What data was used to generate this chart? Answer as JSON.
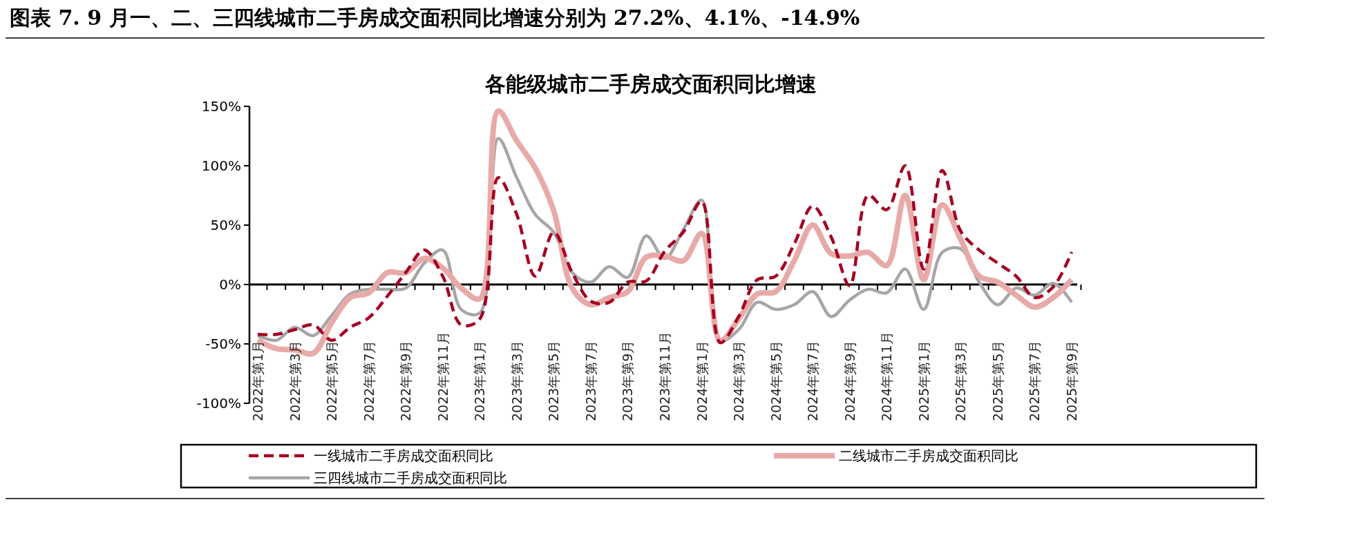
{
  "chart_data": {
    "type": "line",
    "title": "图表 7. 9 月一、二、三四线城市二手房成交面积同比增速分别为 27.2%、4.1%、-14.9%",
    "subtitle": "各能级城市二手房成交面积同比增速",
    "categories": [
      "2022年第1月",
      null,
      "2022年第3月",
      null,
      "2022年第5月",
      null,
      "2022年第7月",
      null,
      "2022年第9月",
      null,
      "2022年第11月",
      null,
      "2023年第1月",
      null,
      "2023年第3月",
      null,
      "2023年第5月",
      null,
      "2023年第7月",
      null,
      "2023年第9月",
      null,
      "2023年第11月",
      null,
      "2024年第1月",
      null,
      "2024年第3月",
      null,
      "2024年第5月",
      null,
      "2024年第7月",
      null,
      "2024年第9月",
      null,
      "2024年第11月",
      null,
      "2025年第1月",
      null,
      "2025年第3月",
      null,
      "2025年第5月",
      null,
      "2025年第7月",
      null,
      "2025年第9月"
    ],
    "series": [
      {
        "name": "一线城市二手房成交面积同比",
        "color": "#a50021",
        "line_style": "dashed",
        "values": [
          -42,
          -42,
          -38,
          -34,
          -47,
          -36,
          -28,
          -10,
          10,
          29,
          7,
          -34,
          -29,
          90,
          59,
          7,
          44,
          10,
          -14,
          -15,
          2,
          3,
          28,
          44,
          70,
          -49,
          -27,
          4,
          7,
          34,
          66,
          40,
          -1,
          75,
          63,
          100,
          13,
          96,
          45,
          29,
          18,
          7,
          -11,
          -2,
          27.2
        ]
      },
      {
        "name": "二线城市二手房成交面积同比",
        "color": "#e8aaa8",
        "values": [
          -47,
          -54,
          -55,
          -58,
          -32,
          -11,
          -7,
          10,
          10,
          22,
          14,
          -3,
          -12,
          146,
          121,
          98,
          62,
          -3,
          -17,
          -11,
          -6,
          23,
          24,
          20,
          43,
          -47,
          -29,
          -8,
          -6,
          20,
          50,
          26,
          24,
          27,
          16,
          75,
          4,
          67,
          38,
          7,
          2,
          -9,
          -19,
          -11,
          4.1
        ]
      },
      {
        "name": "三四线城市二手房成交面积同比",
        "color": "#a6a6a6",
        "values": [
          -43,
          -47,
          -36,
          -43,
          -26,
          -8,
          -4,
          -4,
          -3,
          18,
          29,
          -21,
          -24,
          123,
          90,
          59,
          44,
          10,
          2,
          15,
          6,
          41,
          22,
          46,
          71,
          -47,
          -38,
          -15,
          -21,
          -17,
          -6,
          -27,
          -13,
          -4,
          -7,
          13,
          -21,
          27,
          30,
          2,
          -17,
          -3,
          -9,
          1,
          -14.9
        ]
      }
    ],
    "ylim": [
      -100,
      150
    ],
    "yticks": [
      {
        "value": -100,
        "label": "-100%"
      },
      {
        "value": -50,
        "label": "-50%"
      },
      {
        "value": 0,
        "label": "0%"
      },
      {
        "value": 50,
        "label": "50%"
      },
      {
        "value": 100,
        "label": "100%"
      },
      {
        "value": 150,
        "label": "150%"
      }
    ],
    "legend": "bottom"
  }
}
